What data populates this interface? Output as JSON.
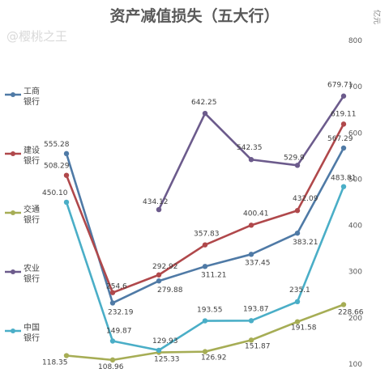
{
  "chart_data": {
    "type": "line",
    "title": "资产减值损失（五大行）",
    "unit": "亿元",
    "watermark": "@樱桃之王",
    "ylim": [
      100,
      800
    ],
    "yticks": [
      100,
      200,
      300,
      400,
      500,
      600,
      700,
      800
    ],
    "x": [
      1,
      2,
      3,
      4,
      5,
      6,
      7
    ],
    "grid": false,
    "legend_position": "left",
    "series": [
      {
        "name": "工商\n银行",
        "color": "#4f7aa6",
        "values": [
          555.28,
          232.19,
          279.88,
          311.21,
          337.45,
          383.21,
          567.29
        ]
      },
      {
        "name": "建设\n银行",
        "color": "#b0484b",
        "values": [
          508.29,
          254.6,
          292.92,
          357.83,
          400.41,
          432.09,
          619.11
        ]
      },
      {
        "name": "交通\n银行",
        "color": "#a6ad55",
        "values": [
          118.35,
          108.96,
          125.33,
          126.92,
          151.87,
          191.58,
          228.66
        ]
      },
      {
        "name": "农业\n银行",
        "color": "#6c5b8c",
        "values": [
          null,
          null,
          434.12,
          642.25,
          542.35,
          529.9,
          679.71
        ]
      },
      {
        "name": "中国\n银行",
        "color": "#4aaec7",
        "values": [
          450.1,
          149.87,
          129.93,
          193.55,
          193.87,
          235.1,
          483.81
        ]
      }
    ],
    "labels": [
      [
        "555.28",
        "232.19",
        "279.88",
        "311.21",
        "337.45",
        "383.21",
        "567.29"
      ],
      [
        "508.29",
        "254.6",
        "292.92",
        "357.83",
        "400.41",
        "432.09",
        "619.11"
      ],
      [
        "118.35",
        "108.96",
        "125.33",
        "126.92",
        "151.87",
        "191.58",
        "228.66"
      ],
      [
        null,
        null,
        "434.12",
        "642.25",
        "542.35",
        "529.9",
        "679.71"
      ],
      [
        "450.10",
        "149.87",
        "129.93",
        "193.55",
        "193.87",
        "235.1",
        "483.81"
      ]
    ]
  }
}
